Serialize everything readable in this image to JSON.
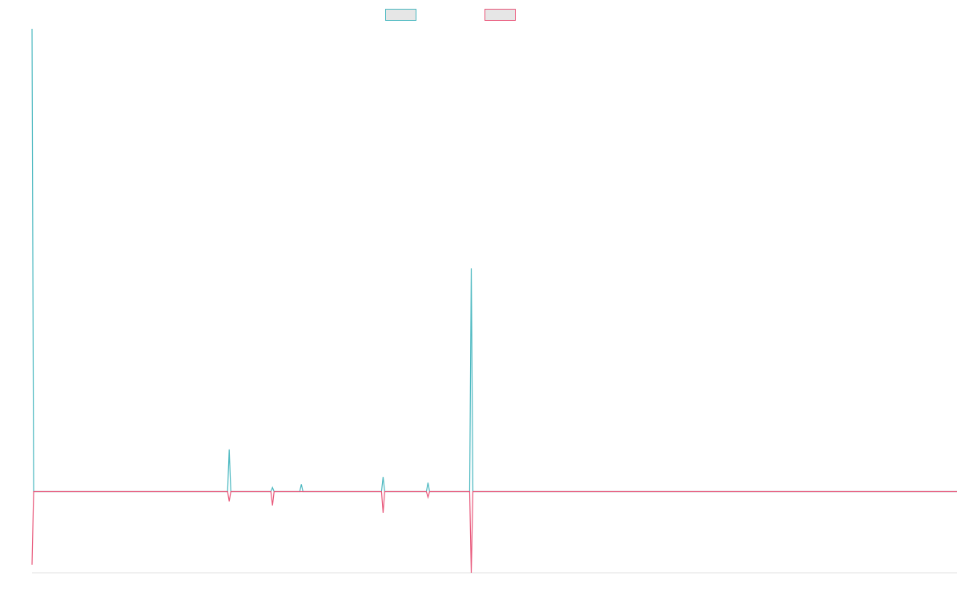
{
  "chart_data": {
    "type": "line",
    "title": "",
    "xlabel": "",
    "ylabel": "",
    "grid": false,
    "legend_position": "top-center",
    "x": [
      0,
      1,
      2,
      3,
      4,
      5,
      6,
      7,
      8,
      9,
      10,
      11,
      12,
      13,
      14,
      15,
      16,
      17,
      18,
      19,
      20,
      21,
      22,
      23,
      24,
      25,
      26,
      27,
      28,
      29,
      30,
      31,
      32,
      33,
      34,
      35,
      36,
      37,
      38,
      39,
      40,
      41,
      42,
      43,
      44,
      45,
      46,
      47,
      48,
      49,
      50,
      51,
      52,
      53,
      54,
      55,
      56,
      57,
      58,
      59,
      60,
      61,
      62,
      63,
      64,
      65,
      66,
      67,
      68,
      69,
      70,
      71,
      72,
      73,
      74,
      75,
      76,
      77,
      78,
      79,
      80,
      81,
      82,
      83,
      84,
      85,
      86,
      87,
      88,
      89,
      90,
      91,
      92,
      93,
      94,
      95,
      96,
      97,
      98,
      99,
      100,
      101,
      102,
      103,
      104,
      105,
      106,
      107,
      108,
      109,
      110,
      111,
      112,
      113,
      114,
      115,
      116,
      117,
      118,
      119,
      120,
      121,
      122,
      123,
      124,
      125,
      126,
      127,
      128,
      129,
      130,
      131,
      132,
      133,
      134,
      135,
      136,
      137,
      138,
      139,
      140,
      141,
      142,
      143,
      144,
      145,
      146,
      147,
      148,
      149,
      150,
      151,
      152,
      153,
      154,
      155,
      156,
      157,
      158,
      159,
      160,
      161,
      162,
      163,
      164,
      165,
      166,
      167,
      168,
      169,
      170,
      171,
      172,
      173,
      174,
      175,
      176,
      177,
      178,
      179,
      180,
      181,
      182,
      183,
      184,
      185,
      186,
      187,
      188,
      189,
      190,
      191,
      192,
      193,
      194,
      195,
      196,
      197,
      198,
      199,
      200,
      201,
      202,
      203,
      204,
      205,
      206,
      207,
      208,
      209,
      210,
      211,
      212,
      213,
      214,
      215,
      216,
      217,
      218,
      219,
      220,
      221,
      222,
      223,
      224,
      225,
      226,
      227,
      228,
      229,
      230,
      231,
      232,
      233,
      234,
      235,
      236,
      237,
      238,
      239,
      240,
      241,
      242,
      243,
      244,
      245,
      246,
      247,
      248,
      249,
      250,
      251,
      252,
      253,
      254,
      255,
      256,
      257,
      258,
      259,
      260,
      261,
      262,
      263,
      264,
      265,
      266,
      267,
      268,
      269,
      270,
      271,
      272,
      273,
      274,
      275,
      276,
      277,
      278,
      279,
      280,
      281,
      282,
      283,
      284,
      285,
      286,
      287,
      288,
      289,
      290,
      291,
      292,
      293,
      294,
      295,
      296,
      297,
      298,
      299,
      300,
      301,
      302,
      303,
      304,
      305,
      306,
      307,
      308,
      309,
      310,
      311,
      312,
      313,
      314,
      315,
      316,
      317,
      318,
      319,
      320,
      321,
      322,
      323,
      324,
      325,
      326,
      327,
      328,
      329,
      330,
      331,
      332,
      333,
      334,
      335,
      336,
      337,
      338,
      339,
      340,
      341,
      342,
      343,
      344,
      345,
      346,
      347,
      348,
      349,
      350,
      351,
      352,
      353,
      354,
      355,
      356,
      357,
      358,
      359,
      360,
      361,
      362,
      363,
      364,
      365,
      366,
      367,
      368,
      369,
      370,
      371,
      372,
      373,
      374,
      375,
      376,
      377,
      378,
      379,
      380,
      381,
      382,
      383,
      384,
      385,
      386,
      387,
      388,
      389,
      390,
      391,
      392,
      393,
      394,
      395,
      396,
      397,
      398,
      399,
      400,
      401,
      402,
      403,
      404,
      405,
      406,
      407,
      408,
      409,
      410,
      411,
      412,
      413,
      414,
      415,
      416,
      417,
      418,
      419,
      420,
      421,
      422,
      423,
      424,
      425,
      426,
      427,
      428,
      429,
      430,
      431,
      432,
      433,
      434,
      435,
      436,
      437,
      438,
      439,
      440,
      441,
      442,
      443,
      444,
      445,
      446,
      447,
      448,
      449,
      450,
      451,
      452,
      453,
      454,
      455,
      456,
      457,
      458,
      459,
      460,
      461,
      462,
      463,
      464,
      465,
      466,
      467,
      468,
      469,
      470,
      471,
      472,
      473,
      474,
      475,
      476,
      477,
      478,
      479,
      480,
      481,
      482,
      483,
      484,
      485,
      486,
      487,
      488,
      489,
      490,
      491,
      492,
      493,
      494,
      495,
      496,
      497,
      498,
      499,
      500,
      501,
      502,
      503,
      504,
      505,
      506,
      507,
      508,
      509,
      510,
      511,
      512,
      513,
      514,
      515,
      516,
      517,
      518,
      519,
      520,
      521,
      522,
      523,
      524,
      525,
      526,
      527,
      528,
      529,
      530,
      531,
      532,
      533,
      534,
      535,
      536,
      537,
      538,
      539,
      540,
      541,
      542,
      543,
      544,
      545,
      546,
      547,
      548,
      549,
      550,
      551,
      552,
      553,
      554,
      555,
      556,
      557,
      558,
      559,
      560,
      561,
      562,
      563,
      564,
      565,
      566,
      567,
      568,
      569,
      570,
      571,
      572,
      573,
      574,
      575,
      576,
      577
    ],
    "ylim": [
      -100,
      570
    ],
    "series": [
      {
        "name": "",
        "color": "#4bb8c0",
        "spikes": [
          [
            0,
            570
          ],
          [
            123,
            52
          ],
          [
            150,
            5
          ],
          [
            168,
            9
          ],
          [
            219,
            18
          ],
          [
            247,
            11
          ],
          [
            274,
            275
          ]
        ]
      },
      {
        "name": "",
        "color": "#e8577a",
        "spikes": [
          [
            0,
            -90
          ],
          [
            123,
            -12
          ],
          [
            150,
            -17
          ],
          [
            219,
            -26
          ],
          [
            247,
            -7
          ],
          [
            274,
            -100
          ]
        ]
      }
    ],
    "baseline": 0
  }
}
